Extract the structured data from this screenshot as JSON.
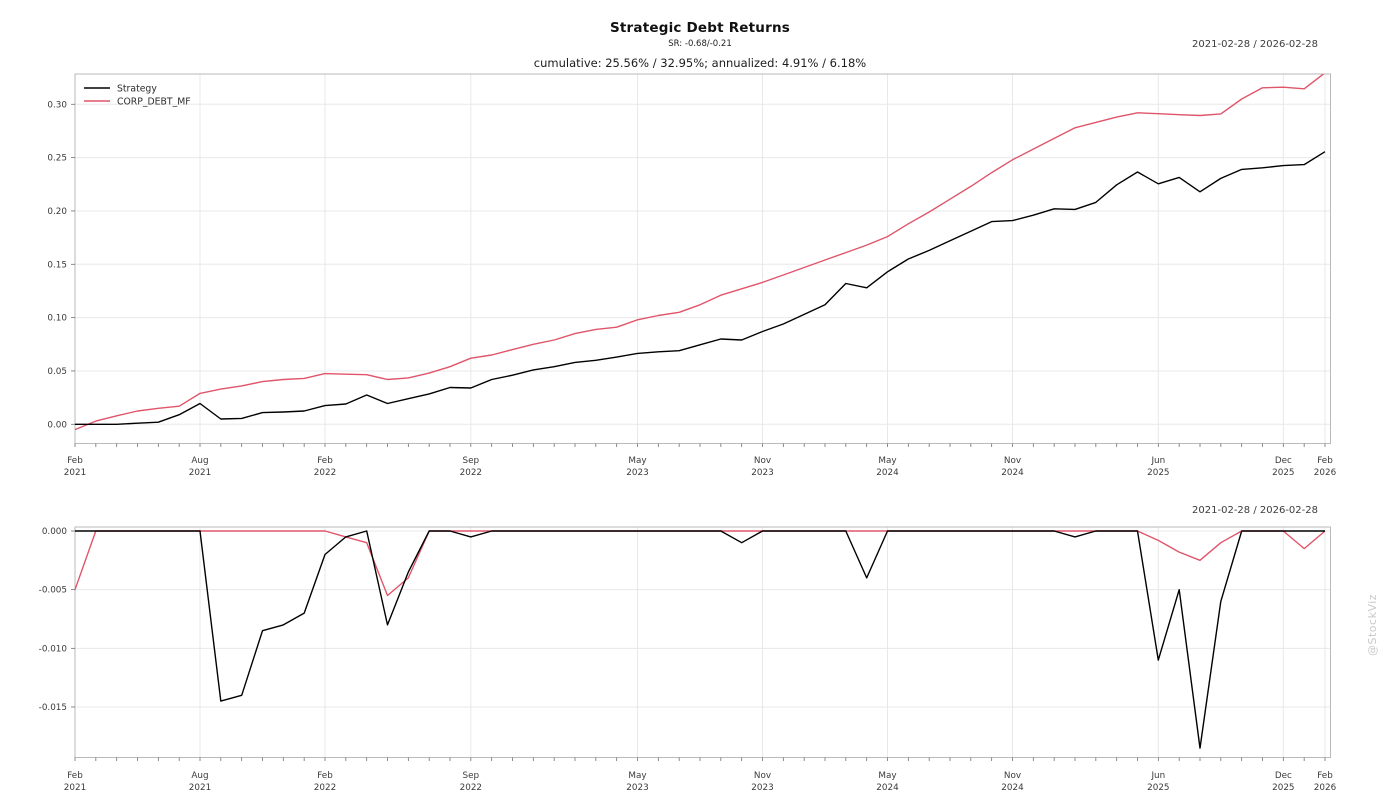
{
  "header": {
    "title": "Strategic Debt Returns",
    "subtitle": "SR: -0.68/-0.21",
    "summary": "cumulative: 25.56% / 32.95%; annualized: 4.91% / 6.18%",
    "date_range_top": "2021-02-28 / 2026-02-28",
    "date_range_bottom": "2021-02-28 / 2026-02-28"
  },
  "watermark": "@StockViz",
  "colors": {
    "strategy": "#000000",
    "benchmark": "#e0556a",
    "grid": "#e8e8e8",
    "frame": "#b3b3b3",
    "tick_text": "#3a3a3a",
    "watermark": "#c9c9c9"
  },
  "chart_data": [
    {
      "type": "line",
      "panel": "cumulative-returns",
      "x_unit": "months since 2021-02",
      "legend_position": "top-left",
      "grid": true,
      "ylim": [
        -0.018,
        0.336
      ],
      "x_ticks": [
        {
          "i": 0,
          "lines": [
            "Feb",
            "2021"
          ]
        },
        {
          "i": 6,
          "lines": [
            "Aug",
            "2021"
          ]
        },
        {
          "i": 12,
          "lines": [
            "Feb",
            "2022"
          ]
        },
        {
          "i": 19,
          "lines": [
            "Sep",
            "2022"
          ]
        },
        {
          "i": 27,
          "lines": [
            "May",
            "2023"
          ]
        },
        {
          "i": 33,
          "lines": [
            "Nov",
            "2023"
          ]
        },
        {
          "i": 39,
          "lines": [
            "May",
            "2024"
          ]
        },
        {
          "i": 45,
          "lines": [
            "Nov",
            "2024"
          ]
        },
        {
          "i": 52,
          "lines": [
            "Jun",
            "2025"
          ]
        },
        {
          "i": 58,
          "lines": [
            "Dec",
            "2025"
          ]
        },
        {
          "i": 60,
          "lines": [
            "Feb",
            "2026"
          ]
        }
      ],
      "y_ticks": [
        {
          "v": 0.0,
          "label": "0.00"
        },
        {
          "v": 0.05,
          "label": "0.05"
        },
        {
          "v": 0.1,
          "label": "0.10"
        },
        {
          "v": 0.15,
          "label": "0.15"
        },
        {
          "v": 0.2,
          "label": "0.20"
        },
        {
          "v": 0.25,
          "label": "0.25"
        },
        {
          "v": 0.3,
          "label": "0.30"
        }
      ],
      "series": [
        {
          "name": "Strategy",
          "color": "#000000",
          "values": [
            0.0,
            0.0,
            0.0,
            0.001,
            0.002,
            0.009,
            0.0195,
            0.005,
            0.0055,
            0.011,
            0.0115,
            0.0125,
            0.0175,
            0.019,
            0.0275,
            0.0195,
            0.024,
            0.0285,
            0.0345,
            0.034,
            0.042,
            0.046,
            0.051,
            0.054,
            0.058,
            0.06,
            0.063,
            0.0665,
            0.068,
            0.069,
            0.0745,
            0.08,
            0.079,
            0.087,
            0.094,
            0.103,
            0.112,
            0.132,
            0.128,
            0.143,
            0.155,
            0.163,
            0.172,
            0.181,
            0.19,
            0.191,
            0.196,
            0.202,
            0.2015,
            0.208,
            0.2245,
            0.2365,
            0.2255,
            0.2315,
            0.218,
            0.2305,
            0.239,
            0.2405,
            0.2425,
            0.2435,
            0.2556
          ]
        },
        {
          "name": "CORP_DEBT_MF",
          "color": "#e0556a",
          "values": [
            -0.005,
            0.003,
            0.008,
            0.0125,
            0.015,
            0.017,
            0.029,
            0.033,
            0.036,
            0.04,
            0.042,
            0.043,
            0.0475,
            0.047,
            0.0465,
            0.042,
            0.0435,
            0.048,
            0.054,
            0.062,
            0.065,
            0.07,
            0.075,
            0.079,
            0.085,
            0.089,
            0.091,
            0.098,
            0.102,
            0.105,
            0.112,
            0.121,
            0.127,
            0.133,
            0.14,
            0.147,
            0.154,
            0.161,
            0.168,
            0.176,
            0.188,
            0.199,
            0.211,
            0.223,
            0.236,
            0.248,
            0.258,
            0.268,
            0.278,
            0.283,
            0.288,
            0.292,
            0.2912,
            0.2902,
            0.2895,
            0.291,
            0.305,
            0.3155,
            0.316,
            0.3145,
            0.3295
          ]
        }
      ]
    },
    {
      "type": "line",
      "panel": "drawdown",
      "x_unit": "months since 2021-02",
      "grid": true,
      "ylim": [
        -0.0193,
        0.0004
      ],
      "x_ticks": [
        {
          "i": 0,
          "lines": [
            "Feb",
            "2021"
          ]
        },
        {
          "i": 6,
          "lines": [
            "Aug",
            "2021"
          ]
        },
        {
          "i": 12,
          "lines": [
            "Feb",
            "2022"
          ]
        },
        {
          "i": 19,
          "lines": [
            "Sep",
            "2022"
          ]
        },
        {
          "i": 27,
          "lines": [
            "May",
            "2023"
          ]
        },
        {
          "i": 33,
          "lines": [
            "Nov",
            "2023"
          ]
        },
        {
          "i": 39,
          "lines": [
            "May",
            "2024"
          ]
        },
        {
          "i": 45,
          "lines": [
            "Nov",
            "2024"
          ]
        },
        {
          "i": 52,
          "lines": [
            "Jun",
            "2025"
          ]
        },
        {
          "i": 58,
          "lines": [
            "Dec",
            "2025"
          ]
        },
        {
          "i": 60,
          "lines": [
            "Feb",
            "2026"
          ]
        }
      ],
      "y_ticks": [
        {
          "v": 0.0,
          "label": "0.000"
        },
        {
          "v": -0.005,
          "label": "-0.005"
        },
        {
          "v": -0.01,
          "label": "-0.010"
        },
        {
          "v": -0.015,
          "label": "-0.015"
        }
      ],
      "series": [
        {
          "name": "Strategy",
          "color": "#000000",
          "values": [
            0,
            0,
            0,
            0,
            0,
            0,
            0,
            -0.0145,
            -0.014,
            -0.0085,
            -0.008,
            -0.007,
            -0.002,
            -0.0005,
            0,
            -0.008,
            -0.0035,
            0,
            0,
            -0.0005,
            0,
            0,
            0,
            0,
            0,
            0,
            0,
            0,
            0,
            0,
            0,
            0,
            -0.001,
            0,
            0,
            0,
            0,
            0,
            -0.004,
            0,
            0,
            0,
            0,
            0,
            0,
            0,
            0,
            0,
            -0.0005,
            0,
            0,
            0,
            -0.011,
            -0.005,
            -0.0185,
            -0.006,
            0,
            0,
            0,
            0,
            0
          ]
        },
        {
          "name": "CORP_DEBT_MF",
          "color": "#e0556a",
          "values": [
            -0.005,
            0,
            0,
            0,
            0,
            0,
            0,
            0,
            0,
            0,
            0,
            0,
            0,
            -0.0005,
            -0.001,
            -0.0055,
            -0.004,
            0,
            0,
            0,
            0,
            0,
            0,
            0,
            0,
            0,
            0,
            0,
            0,
            0,
            0,
            0,
            0,
            0,
            0,
            0,
            0,
            0,
            0,
            0,
            0,
            0,
            0,
            0,
            0,
            0,
            0,
            0,
            0,
            0,
            0,
            0,
            -0.0008,
            -0.0018,
            -0.0025,
            -0.001,
            0,
            0,
            0,
            -0.0015,
            0
          ]
        }
      ]
    }
  ]
}
